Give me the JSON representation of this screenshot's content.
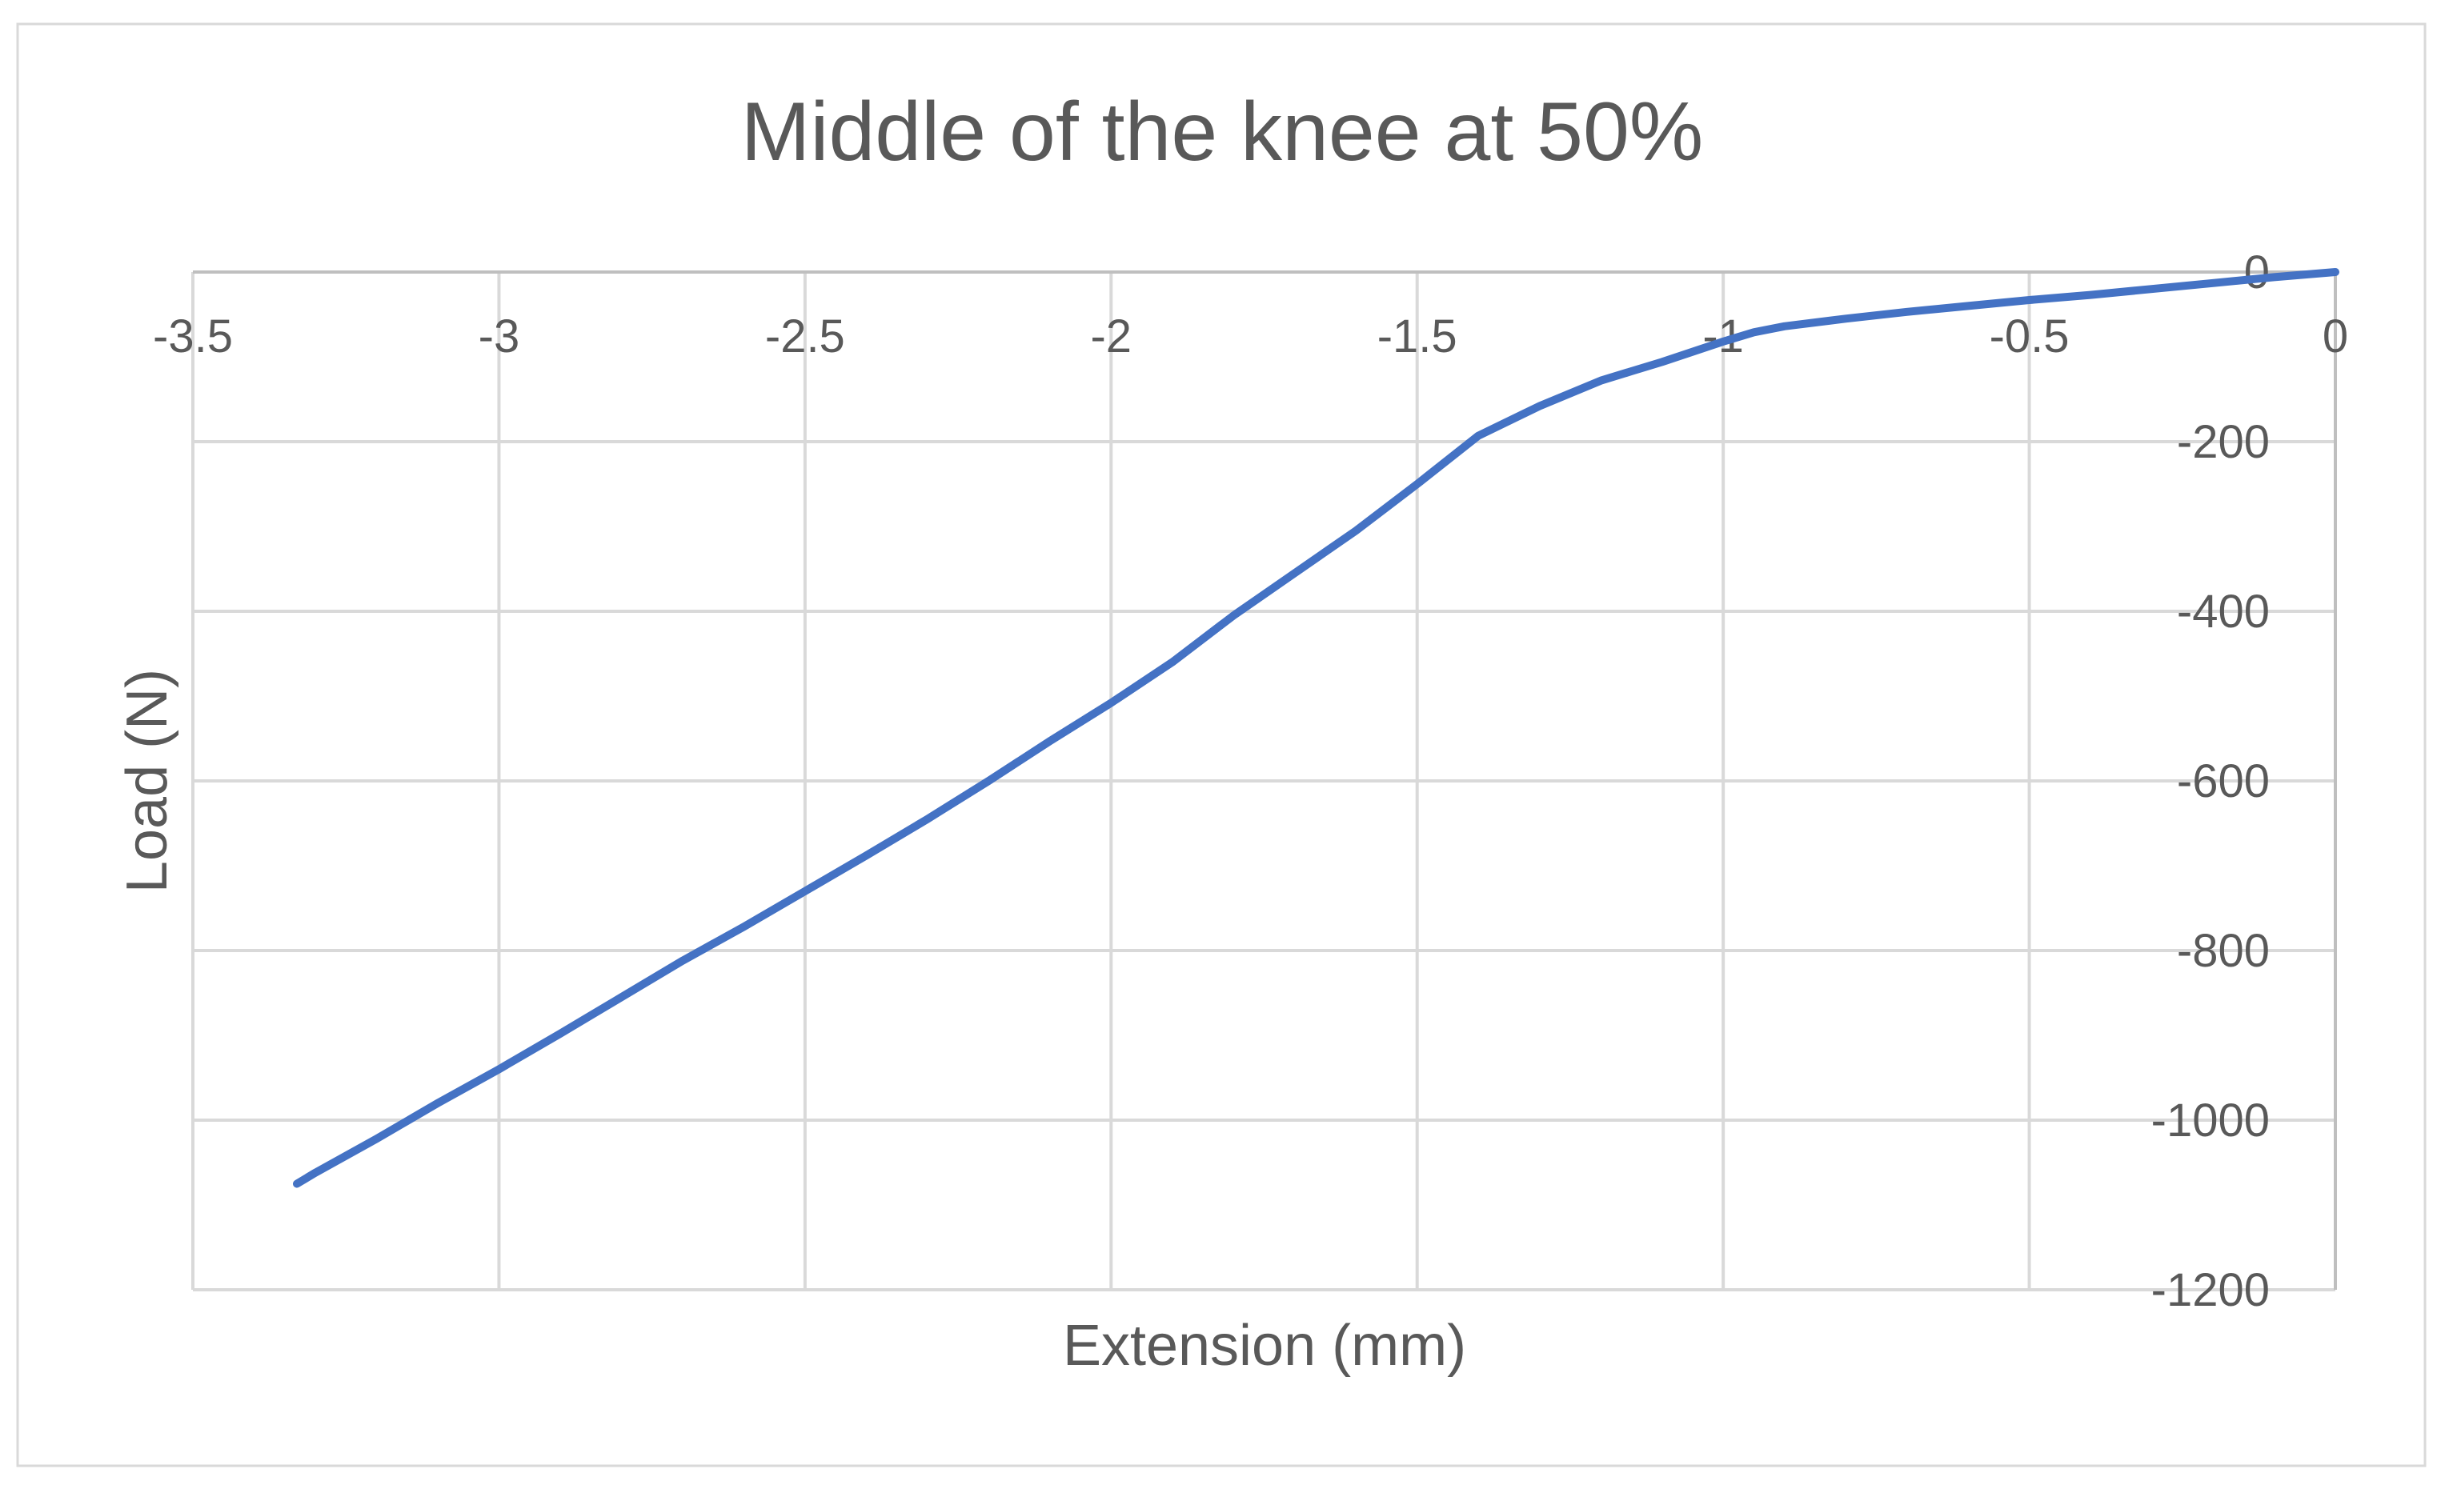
{
  "chart_data": {
    "type": "line",
    "title": "Middle of the knee at 50%",
    "xlabel": "Extension (mm)",
    "ylabel": "Load (N)",
    "xlim": [
      -3.5,
      0
    ],
    "ylim": [
      -1200,
      0
    ],
    "x_ticks": [
      -3.5,
      -3,
      -2.5,
      -2,
      -1.5,
      -1,
      -0.5,
      0
    ],
    "x_tick_labels": [
      "-3.5",
      "-3",
      "-2.5",
      "-2",
      "-1.5",
      "-1",
      "-0.5",
      "0"
    ],
    "y_ticks": [
      0,
      -200,
      -400,
      -600,
      -800,
      -1000,
      -1200
    ],
    "y_tick_labels": [
      "0",
      "-200",
      "-400",
      "-600",
      "-800",
      "-1000",
      "-1200"
    ],
    "grid": true,
    "legend": "none",
    "x_axis_position": "top (at y = 0)",
    "y_axis_position": "right (at x = 0)",
    "series": [
      {
        "color": "#4472C4",
        "x": [
          0,
          -0.1,
          -0.2,
          -0.3,
          -0.4,
          -0.5,
          -0.6,
          -0.7,
          -0.8,
          -0.9,
          -0.95,
          -1.0,
          -1.05,
          -1.1,
          -1.15,
          -1.2,
          -1.3,
          -1.4,
          -1.5,
          -1.6,
          -1.7,
          -1.8,
          -1.9,
          -2.0,
          -2.1,
          -2.2,
          -2.3,
          -2.4,
          -2.5,
          -2.6,
          -2.7,
          -2.8,
          -2.9,
          -3.0,
          -3.1,
          -3.2,
          -3.3,
          -3.33
        ],
        "y": [
          0,
          -6,
          -13,
          -20,
          -27,
          -33,
          -40,
          -47,
          -55,
          -64,
          -71,
          -82,
          -94,
          -106,
          -117,
          -128,
          -158,
          -193,
          -250,
          -305,
          -355,
          -405,
          -460,
          -508,
          -553,
          -600,
          -645,
          -688,
          -730,
          -772,
          -812,
          -855,
          -898,
          -940,
          -980,
          -1022,
          -1062,
          -1075
        ]
      }
    ]
  }
}
